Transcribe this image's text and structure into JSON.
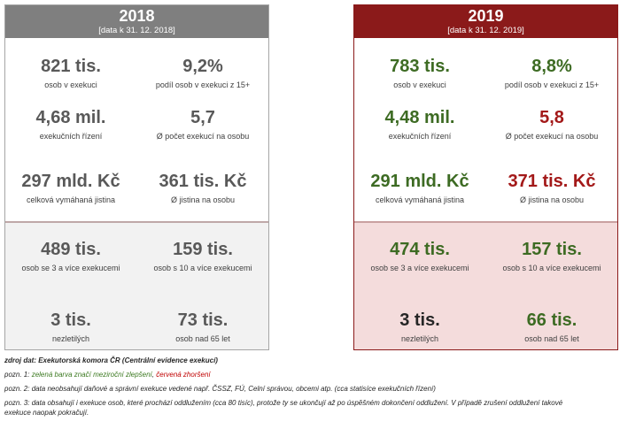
{
  "panel_2018": {
    "year": "2018",
    "date": "[data k 31. 12. 2018]",
    "stats": [
      {
        "value": "821 tis.",
        "label": "osob v exekuci"
      },
      {
        "value": "9,2%",
        "label": "podíl osob v exekuci z 15+"
      },
      {
        "value": "4,68 mil.",
        "label": "exekučních řízení"
      },
      {
        "value": "5,7",
        "label": "Ø počet exekucí na osobu"
      },
      {
        "value": "297 mld. Kč",
        "label": "celková vymáhaná jistina"
      },
      {
        "value": "361 tis. Kč",
        "label": "Ø jistina na osobu"
      },
      {
        "value": "489 tis.",
        "label": "osob se 3 a více exekucemi"
      },
      {
        "value": "159 tis.",
        "label": "osob s 10 a více exekucemi"
      },
      {
        "value": "3 tis.",
        "label": "nezletilých"
      },
      {
        "value": "73 tis.",
        "label": "osob nad 65 let"
      }
    ]
  },
  "panel_2019": {
    "year": "2019",
    "date": "[data k 31. 12. 2019]",
    "stats": [
      {
        "value": "783 tis.",
        "label": "osob v exekuci"
      },
      {
        "value": "8,8%",
        "label": "podíl osob v exekuci z 15+"
      },
      {
        "value": "4,48 mil.",
        "label": "exekučních řízení"
      },
      {
        "value": "5,8",
        "label": "Ø počet exekucí na osobu"
      },
      {
        "value": "291 mld. Kč",
        "label": "celková vymáhaná jistina"
      },
      {
        "value": "371 tis. Kč",
        "label": "Ø jistina na osobu"
      },
      {
        "value": "474 tis.",
        "label": "osob se 3 a více exekucemi"
      },
      {
        "value": "157 tis.",
        "label": "osob s 10 a více exekucemi"
      },
      {
        "value": "3 tis.",
        "label": "nezletilých"
      },
      {
        "value": "66 tis.",
        "label": "osob nad 65 let"
      }
    ]
  },
  "notes": {
    "source": "zdroj dat: Exekutorská komora ČR (Centrální evidence exekucí)",
    "note1_prefix": "pozn. 1:",
    "note1_green": "zelená barva značí meziroční zlepšení",
    "note1_sep": ",",
    "note1_red": "červená zhoršení",
    "note2": "pozn. 2: data neobsahují daňové a správní exekuce vedené např. ČSSZ, FÚ, Celní správou, obcemi atp. (cca statisíce exekučních řízení)",
    "note3_line1": "pozn. 3: data obsahují i exekuce osob, které prochází oddlužením (cca 80 tisíc), protože ty se ukončují až po úspěšném dokončení oddlužení. V případě zrušení oddlužení takové",
    "note3_line2": "exekuce naopak pokračují."
  },
  "colors": {
    "header_2018": "#7f7f7f",
    "header_2019": "#8b1a1a",
    "improvement_green": "#3d6b23",
    "worsening_red": "#a31919",
    "bottom_2018": "#f2f2f2",
    "bottom_2019": "#f4dcdc"
  }
}
